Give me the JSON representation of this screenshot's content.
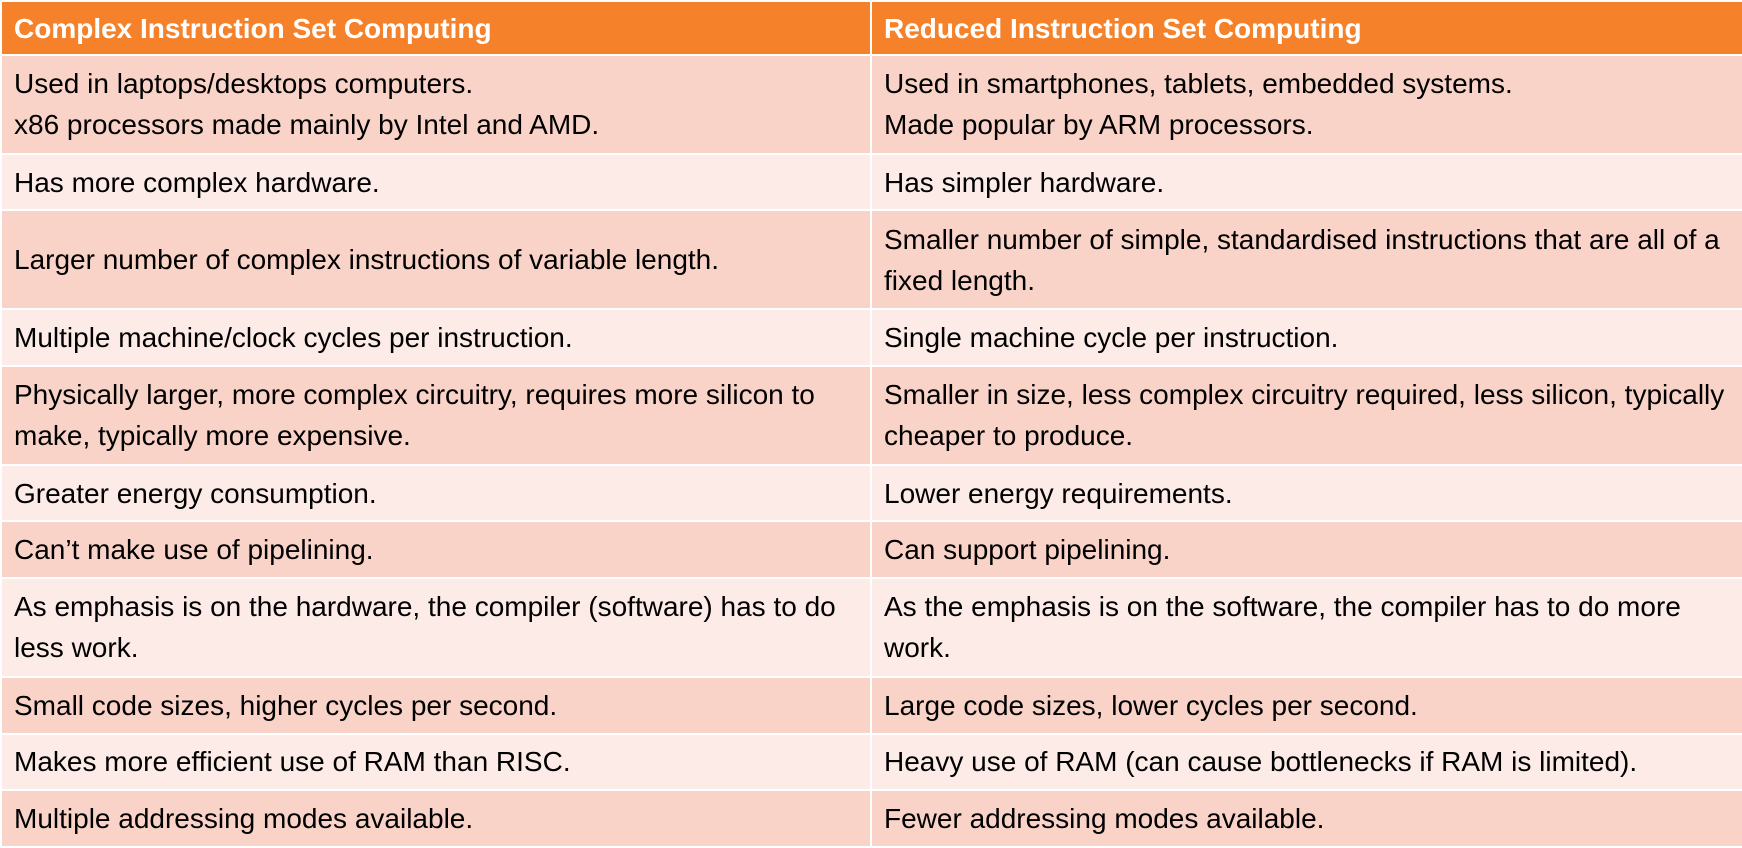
{
  "table": {
    "headers": [
      "Complex Instruction Set Computing",
      "Reduced Instruction Set Computing"
    ],
    "rows": [
      [
        "Used in laptops/desktops computers.\nx86 processors made mainly by Intel and AMD.",
        "Used in smartphones, tablets, embedded systems.\nMade popular by ARM processors."
      ],
      [
        "Has more complex hardware.",
        "Has simpler hardware."
      ],
      [
        "Larger number of complex instructions of variable length.",
        "Smaller number of simple, standardised instructions that are all of a fixed length."
      ],
      [
        "Multiple machine/clock cycles per instruction.",
        "Single machine cycle per instruction."
      ],
      [
        "Physically larger, more complex circuitry, requires more silicon to make, typically more expensive.",
        "Smaller in size, less complex circuitry required, less silicon, typically cheaper to produce."
      ],
      [
        "Greater energy consumption.",
        "Lower energy requirements."
      ],
      [
        "Can’t make use of pipelining.",
        "Can support pipelining."
      ],
      [
        "As emphasis is on the hardware, the compiler (software) has to do less work.",
        "As the emphasis is on the software, the compiler has to do more work."
      ],
      [
        "Small code sizes, higher cycles per second.",
        "Large code sizes, lower cycles per second."
      ],
      [
        "Makes more efficient use of RAM than RISC.",
        "Heavy use of RAM (can cause bottlenecks if RAM is limited)."
      ],
      [
        "Multiple addressing modes available.",
        "Fewer addressing modes available."
      ]
    ]
  },
  "colors": {
    "header_bg": "#f5822a",
    "header_text": "#ffffff",
    "row_odd_bg": "#f9d3c7",
    "row_even_bg": "#fcebe6"
  }
}
